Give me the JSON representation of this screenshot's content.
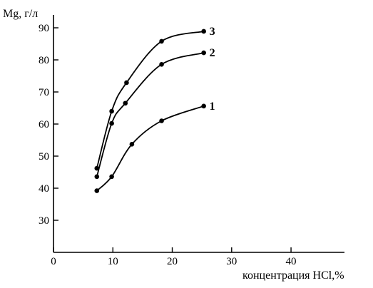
{
  "chart_data": {
    "type": "line",
    "xlabel": "концентрация HCl,%",
    "ylabel": "Mg, г/л",
    "xlim": [
      0,
      49
    ],
    "ylim": [
      20,
      94
    ],
    "xticks": [
      0,
      10,
      20,
      30,
      40
    ],
    "yticks": [
      30,
      40,
      50,
      60,
      70,
      80,
      90
    ],
    "grid": false,
    "series": [
      {
        "name": "1",
        "x": [
          7.3,
          9.8,
          13.2,
          18.2,
          25.3
        ],
        "values": [
          39.2,
          43.6,
          53.7,
          61.0,
          65.6
        ]
      },
      {
        "name": "2",
        "x": [
          7.3,
          9.8,
          12.1,
          18.2,
          25.3
        ],
        "values": [
          43.6,
          60.2,
          66.5,
          78.6,
          82.2
        ]
      },
      {
        "name": "3",
        "x": [
          7.3,
          9.8,
          12.3,
          18.2,
          25.3
        ],
        "values": [
          46.2,
          64.0,
          72.9,
          85.8,
          88.9
        ]
      }
    ]
  }
}
